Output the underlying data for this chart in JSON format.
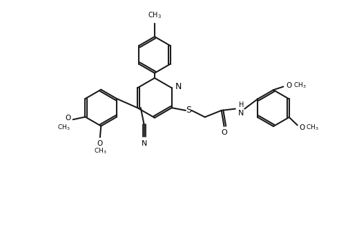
{
  "background_color": "#ffffff",
  "line_color": "#1a1a1a",
  "line_width": 1.5,
  "figsize": [
    4.91,
    3.65
  ],
  "dpi": 100,
  "text_color": "#000000",
  "font_size": 7.5,
  "xlim": [
    0,
    10
  ],
  "ylim": [
    0,
    7.5
  ]
}
